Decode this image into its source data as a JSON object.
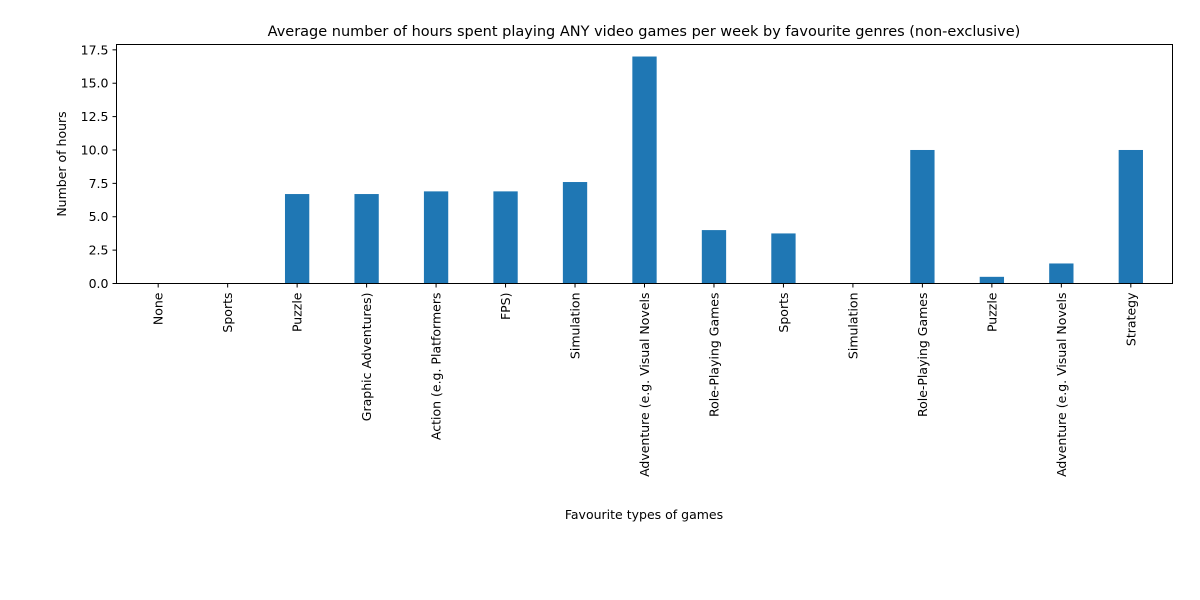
{
  "chart_data": {
    "type": "bar",
    "title": "Average number of hours spent playing ANY video games per week by favourite genres (non-exclusive)",
    "xlabel": "Favourite types of games",
    "ylabel": "Number of hours",
    "ylim": [
      0,
      17.9
    ],
    "yticks": [
      "0.0",
      "2.5",
      "5.0",
      "7.5",
      "10.0",
      "12.5",
      "15.0",
      "17.5"
    ],
    "ytick_values": [
      0,
      2.5,
      5,
      7.5,
      10,
      12.5,
      15,
      17.5
    ],
    "categories": [
      "None",
      "Sports",
      "Puzzle",
      "Graphic Adventures)",
      "Action (e.g. Platformers",
      "FPS)",
      "Simulation",
      "Adventure (e.g. Visual Novels",
      "Role-Playing Games",
      "Sports",
      "Simulation",
      "Role-Playing Games",
      "Puzzle",
      "Adventure (e.g. Visual Novels",
      "Strategy"
    ],
    "values": [
      0,
      0,
      6.7,
      6.7,
      6.9,
      6.9,
      7.6,
      17.0,
      4.0,
      3.75,
      0,
      10.0,
      0.5,
      1.5,
      10.0
    ],
    "bar_color": "#1f77b4",
    "grid": false,
    "legend": "none"
  }
}
